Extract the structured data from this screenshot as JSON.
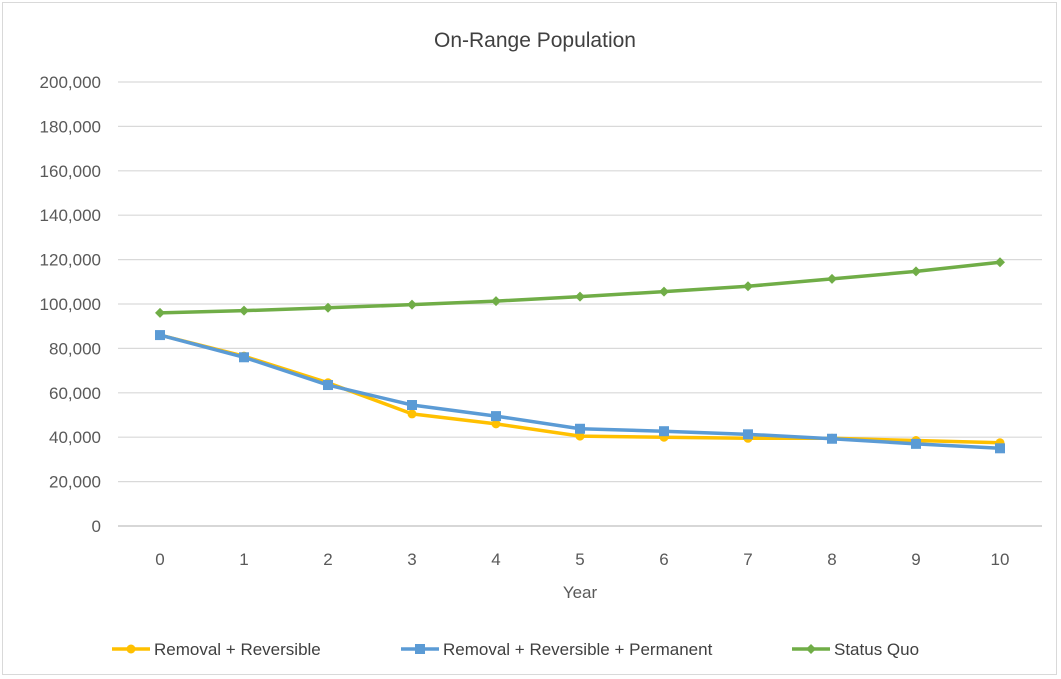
{
  "chart_data": {
    "type": "line",
    "title": "On-Range Population",
    "xlabel": "Year",
    "ylabel": "",
    "categories": [
      "0",
      "1",
      "2",
      "3",
      "4",
      "5",
      "6",
      "7",
      "8",
      "9",
      "10"
    ],
    "y_ticks": [
      "0",
      "20,000",
      "40,000",
      "60,000",
      "80,000",
      "100,000",
      "120,000",
      "140,000",
      "160,000",
      "180,000",
      "200,000"
    ],
    "ylim": [
      0,
      200000
    ],
    "grid": "horizontal",
    "legend_position": "bottom",
    "series": [
      {
        "name": "Removal + Reversible",
        "color": "#FFC000",
        "marker": "circle",
        "values": [
          86000,
          76500,
          64500,
          50500,
          46000,
          40500,
          40000,
          39500,
          39500,
          38500,
          37500
        ]
      },
      {
        "name": "Removal + Reversible + Permanent",
        "color": "#5B9BD5",
        "marker": "square",
        "values": [
          86000,
          76000,
          63500,
          54500,
          49500,
          43800,
          42700,
          41300,
          39300,
          37000,
          35000
        ]
      },
      {
        "name": "Status Quo",
        "color": "#70AD47",
        "marker": "diamond",
        "values": [
          96000,
          97000,
          98300,
          99700,
          101300,
          103300,
          105600,
          108000,
          111300,
          114700,
          118800
        ]
      }
    ]
  }
}
